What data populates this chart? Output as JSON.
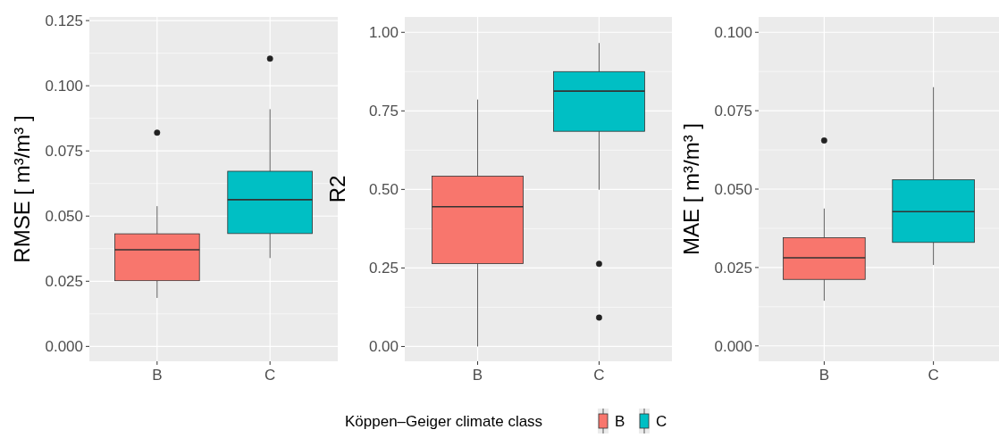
{
  "chart_data": [
    {
      "type": "box",
      "ylabel": "RMSE [ m³/m³ ]",
      "categories": [
        "B",
        "C"
      ],
      "ylim": [
        -0.0057,
        0.1264
      ],
      "yticks": [
        {
          "value": 0,
          "label": "0.000"
        },
        {
          "value": 0.025,
          "label": "0.025"
        },
        {
          "value": 0.05,
          "label": "0.050"
        },
        {
          "value": 0.075,
          "label": "0.075"
        },
        {
          "value": 0.1,
          "label": "0.100"
        },
        {
          "value": 0.125,
          "label": "0.125"
        }
      ],
      "grid": true,
      "series": [
        {
          "color": "#f8766d",
          "boxes": [
            {
              "low": 0.0186,
              "q1": 0.0252,
              "median": 0.0371,
              "q3": 0.0432,
              "high": 0.0538,
              "outliers": [
                0.082
              ]
            },
            null
          ]
        },
        {
          "color": "#00bfc4",
          "boxes": [
            null,
            {
              "low": 0.0339,
              "q1": 0.0433,
              "median": 0.0563,
              "q3": 0.0672,
              "high": 0.091,
              "outliers": [
                0.1104
              ]
            }
          ]
        }
      ]
    },
    {
      "type": "box",
      "ylabel": "R2",
      "categories": [
        "B",
        "C"
      ],
      "ylim": [
        -0.047,
        1.049
      ],
      "yticks": [
        {
          "value": 0,
          "label": "0.00"
        },
        {
          "value": 0.25,
          "label": "0.25"
        },
        {
          "value": 0.5,
          "label": "0.50"
        },
        {
          "value": 0.75,
          "label": "0.75"
        },
        {
          "value": 1,
          "label": "1.00"
        }
      ],
      "grid": true,
      "legend": "bottom",
      "legend_title": "Köppen–Geiger climate class",
      "series": [
        {
          "name": "B",
          "color": "#f8766d",
          "boxes": [
            {
              "low": 0.0,
              "q1": 0.264,
              "median": 0.445,
              "q3": 0.542,
              "high": 0.786
            },
            null
          ]
        },
        {
          "name": "C",
          "color": "#00bfc4",
          "boxes": [
            null,
            {
              "low": 0.499,
              "q1": 0.685,
              "median": 0.813,
              "q3": 0.875,
              "high": 0.966,
              "outliers": [
                0.263,
                0.092
              ]
            }
          ]
        }
      ]
    },
    {
      "type": "box",
      "ylabel": "MAE [ m³/m³ ]",
      "categories": [
        "B",
        "C"
      ],
      "ylim": [
        -0.0049,
        0.1049
      ],
      "yticks": [
        {
          "value": 0,
          "label": "0.000"
        },
        {
          "value": 0.025,
          "label": "0.025"
        },
        {
          "value": 0.05,
          "label": "0.050"
        },
        {
          "value": 0.075,
          "label": "0.075"
        },
        {
          "value": 0.1,
          "label": "0.100"
        }
      ],
      "grid": true,
      "series": [
        {
          "color": "#f8766d",
          "boxes": [
            {
              "low": 0.0144,
              "q1": 0.0212,
              "median": 0.0281,
              "q3": 0.0345,
              "high": 0.0438,
              "outliers": [
                0.0655
              ]
            },
            null
          ]
        },
        {
          "color": "#00bfc4",
          "boxes": [
            null,
            {
              "low": 0.0258,
              "q1": 0.033,
              "median": 0.0428,
              "q3": 0.053,
              "high": 0.0825
            }
          ]
        }
      ]
    }
  ]
}
